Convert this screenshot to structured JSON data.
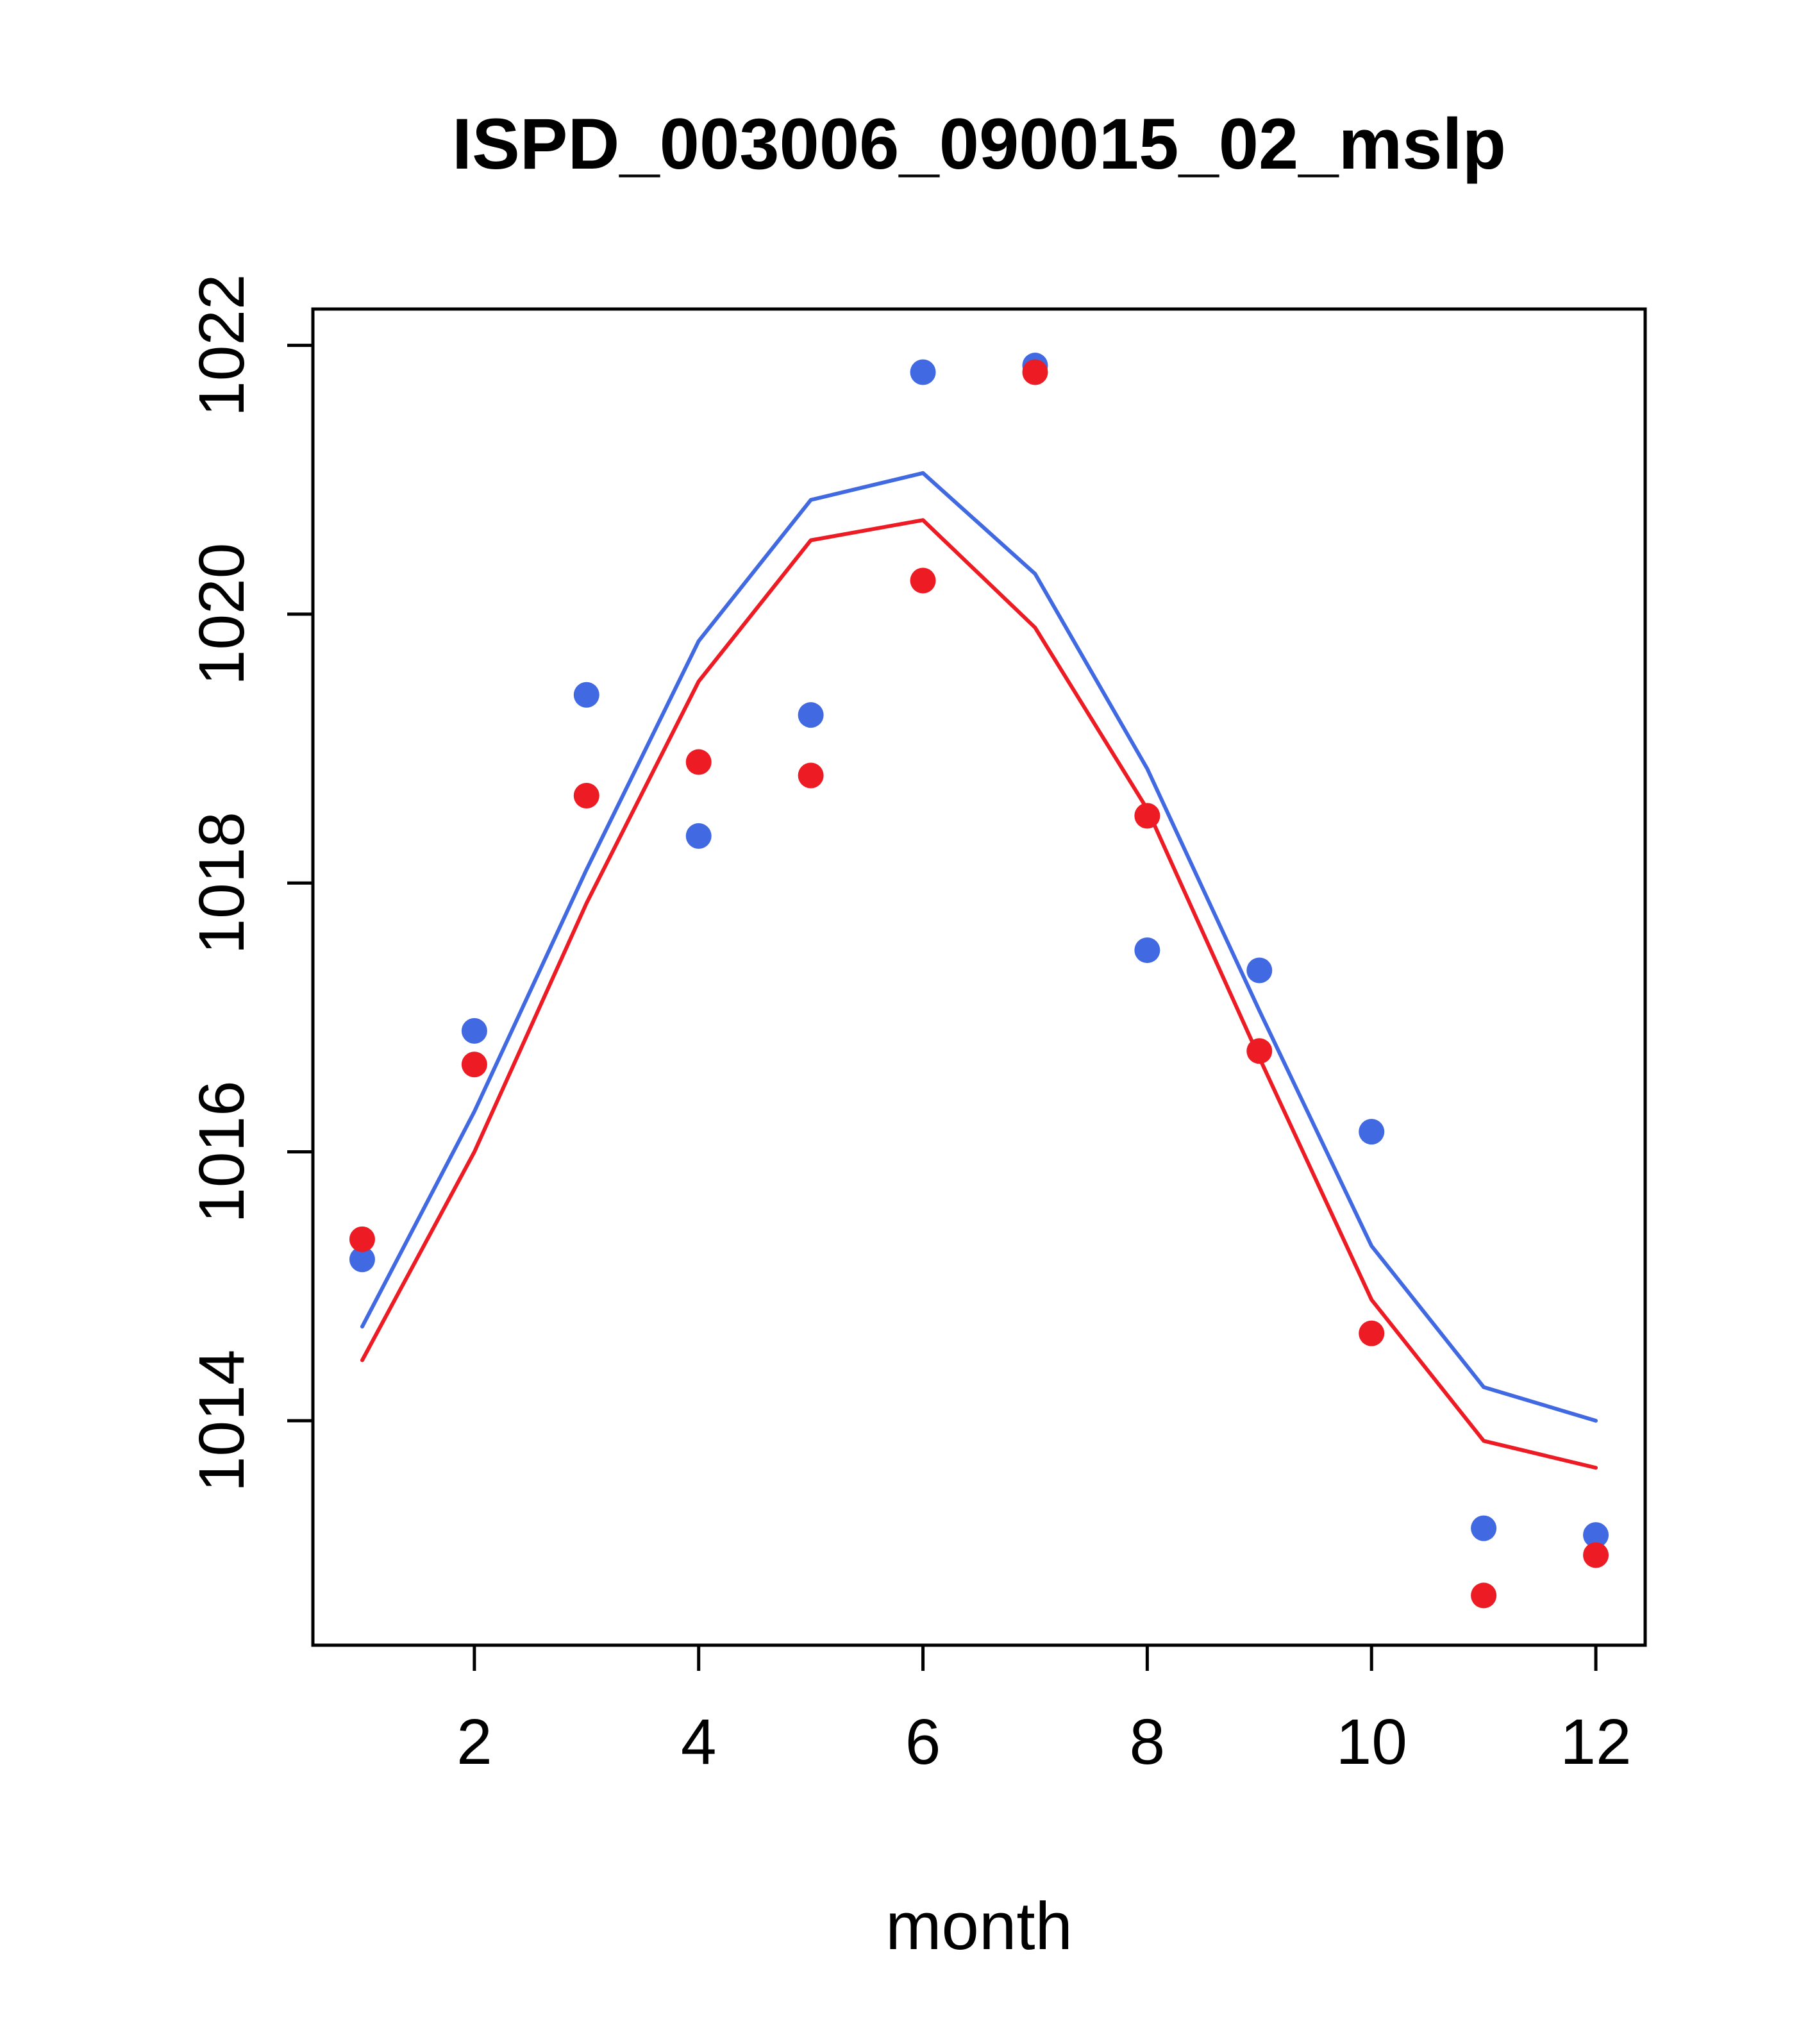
{
  "chart_data": {
    "type": "scatter",
    "title": "ISPD_003006_090015_02_mslp",
    "xlabel": "month",
    "ylabel": "",
    "x": [
      1,
      2,
      3,
      4,
      5,
      6,
      7,
      8,
      9,
      10,
      11,
      12
    ],
    "xlim": [
      0.56,
      12.44
    ],
    "ylim": [
      1012.33,
      1022.27
    ],
    "x_ticks": [
      2,
      4,
      6,
      8,
      10,
      12
    ],
    "y_ticks": [
      1014,
      1016,
      1018,
      1020,
      1022
    ],
    "grid": false,
    "legend": "none",
    "colors": {
      "blue": "#4169E1",
      "red": "#ED1C24"
    },
    "series": [
      {
        "name": "blue-line",
        "kind": "line",
        "color": "#4169E1",
        "values": [
          1014.7,
          1016.3,
          1018.1,
          1019.8,
          1020.85,
          1021.05,
          1020.3,
          1018.85,
          1017.05,
          1015.3,
          1014.25,
          1014.0
        ]
      },
      {
        "name": "red-line",
        "kind": "line",
        "color": "#ED1C24",
        "values": [
          1014.45,
          1016.0,
          1017.85,
          1019.5,
          1020.55,
          1020.7,
          1019.9,
          1018.55,
          1016.7,
          1014.9,
          1013.85,
          1013.65
        ]
      },
      {
        "name": "blue-points",
        "kind": "points",
        "color": "#4169E1",
        "values": [
          1015.2,
          1016.9,
          1019.4,
          1018.35,
          1019.25,
          1021.8,
          1021.85,
          1017.5,
          1017.35,
          1016.15,
          1013.2,
          1013.15
        ]
      },
      {
        "name": "red-points",
        "kind": "points",
        "color": "#ED1C24",
        "values": [
          1015.35,
          1016.65,
          1018.65,
          1018.9,
          1018.8,
          1020.25,
          1021.8,
          1018.5,
          1016.75,
          1014.65,
          1012.7,
          1013.0
        ]
      }
    ]
  },
  "layout_labels": {
    "note": ""
  }
}
